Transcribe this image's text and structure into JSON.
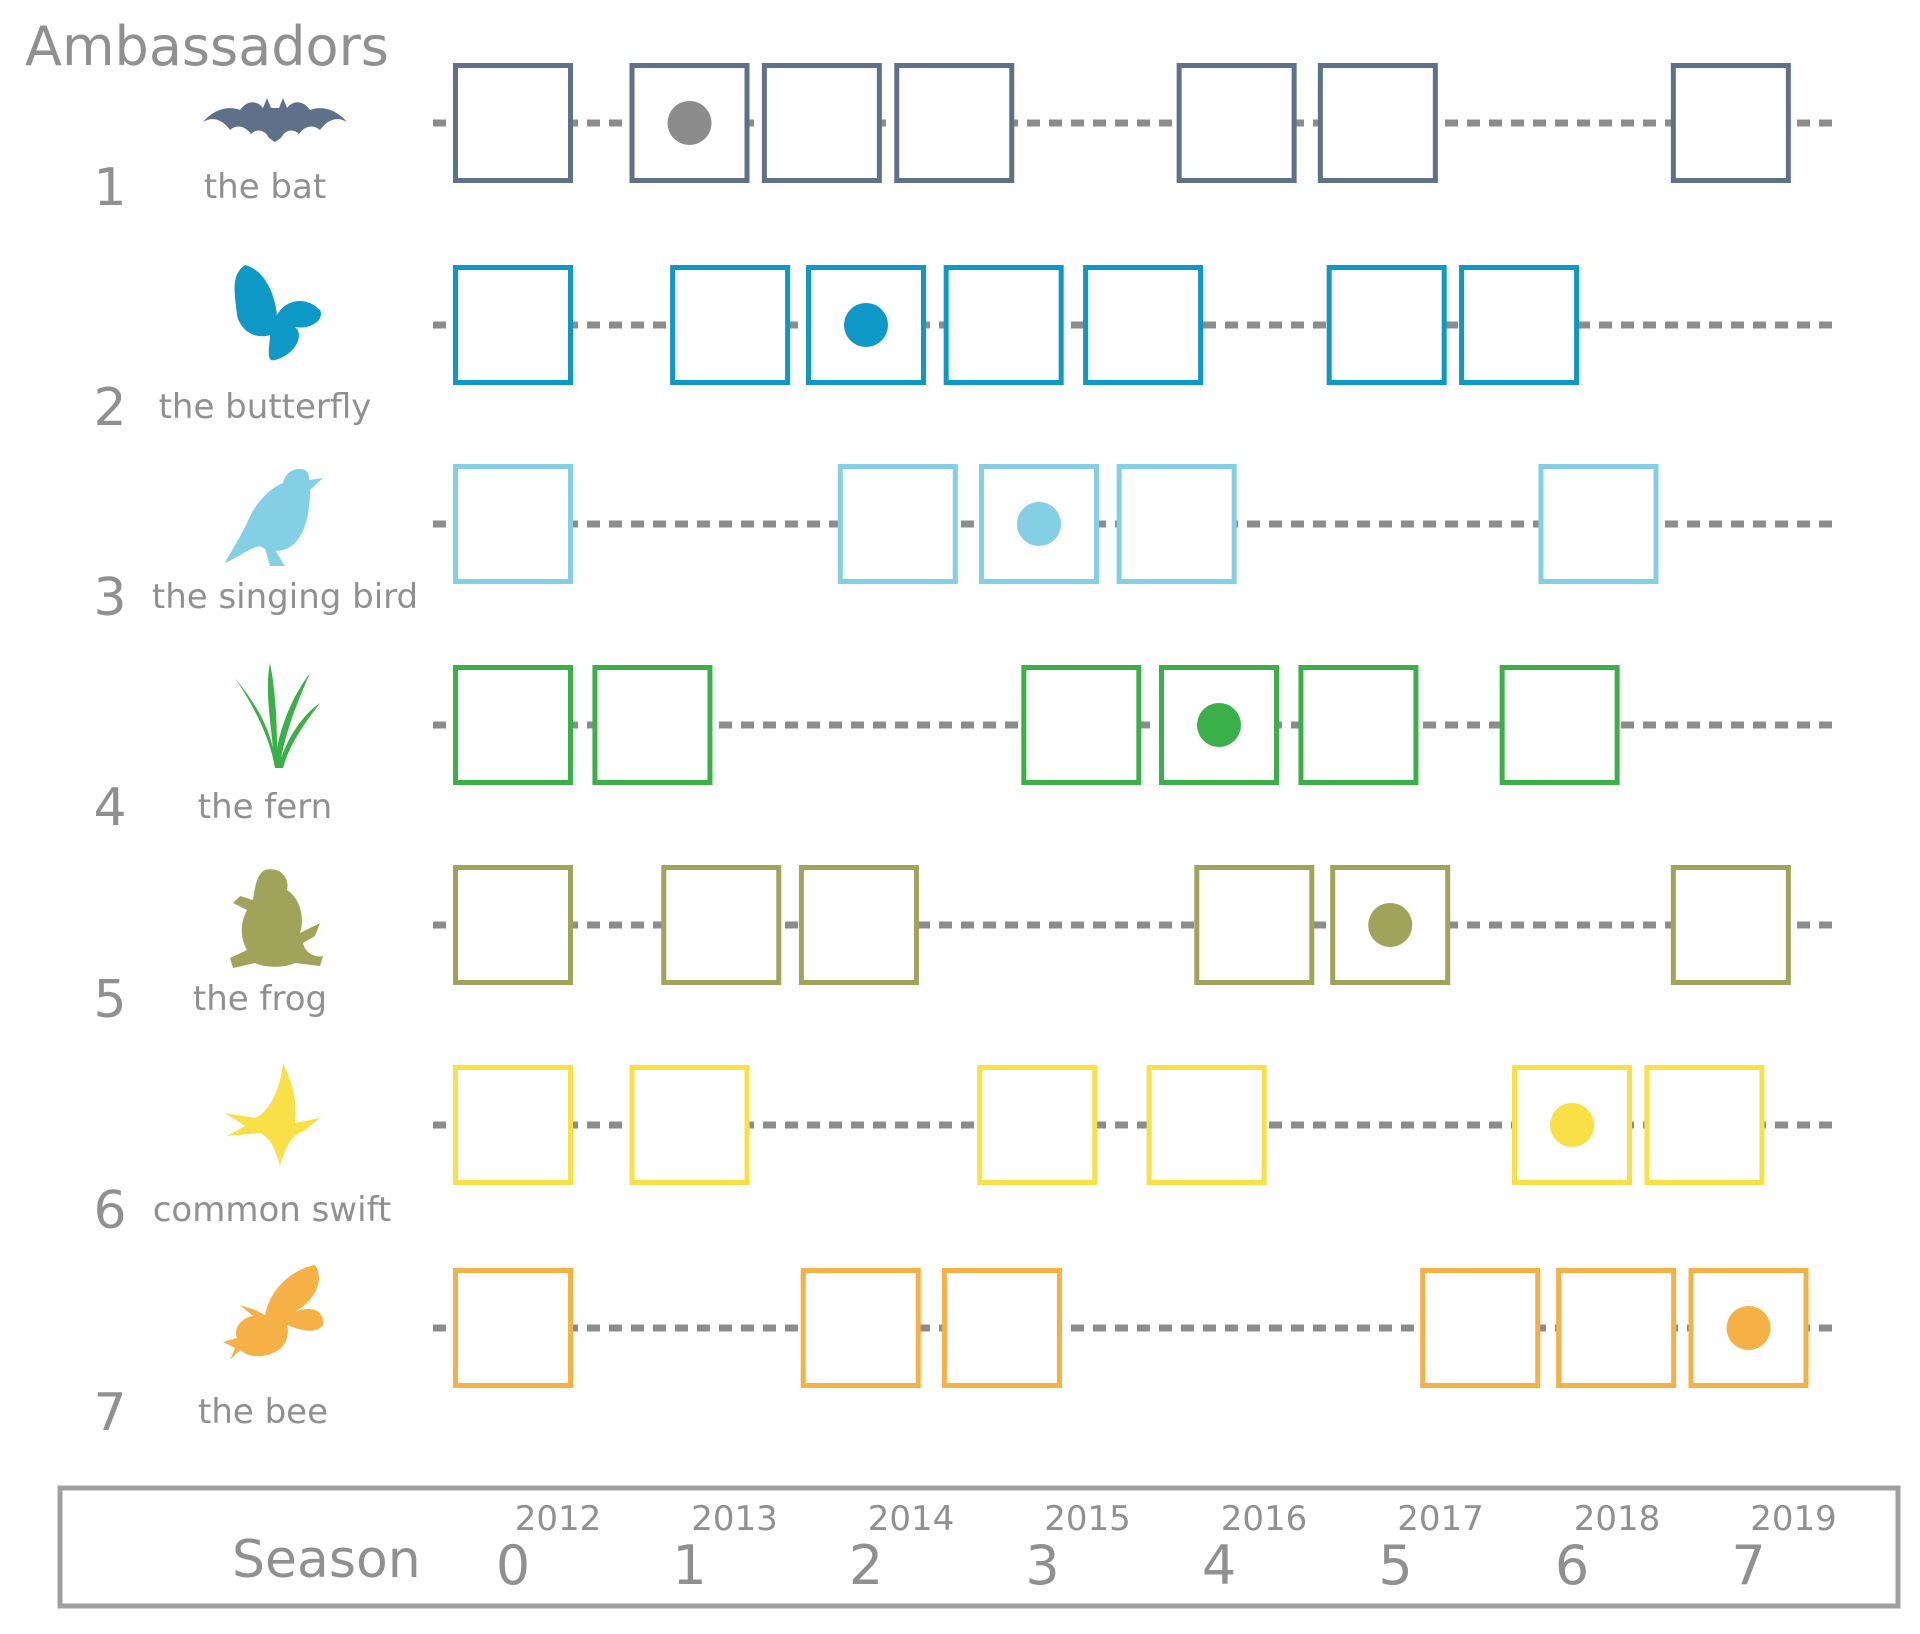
{
  "title": "Ambassadors",
  "season_label": "Season",
  "colors": {
    "dashed_line": "#8c8c8c",
    "label_text": "#909090",
    "footer_border": "#a0a0a0"
  },
  "seasons": [
    {
      "number": "0",
      "year": "2012"
    },
    {
      "number": "1",
      "year": "2013"
    },
    {
      "number": "2",
      "year": "2014"
    },
    {
      "number": "3",
      "year": "2015"
    },
    {
      "number": "4",
      "year": "2016"
    },
    {
      "number": "5",
      "year": "2017"
    },
    {
      "number": "6",
      "year": "2018"
    },
    {
      "number": "7",
      "year": "2019"
    }
  ],
  "ambassadors": [
    {
      "number": "1",
      "name": "the bat",
      "icon": "bat-icon",
      "color": "#5f7089",
      "box_positions": [
        0,
        1,
        1.75,
        2.5,
        4.1,
        4.9,
        6.9
      ],
      "dot_at": 1
    },
    {
      "number": "2",
      "name": "the butterfly",
      "icon": "butterfly-icon",
      "color": "#0e98c6",
      "box_positions": [
        0,
        1.23,
        2.0,
        2.78,
        3.57,
        4.95,
        5.7
      ],
      "dot_at": 2.0
    },
    {
      "number": "3",
      "name": "the singing bird",
      "icon": "bird-icon",
      "color": "#83cfe3",
      "box_positions": [
        0,
        2.18,
        2.98,
        3.76,
        6.15
      ],
      "dot_at": 2.98
    },
    {
      "number": "4",
      "name": "the fern",
      "icon": "fern-icon",
      "color": "#3bb049",
      "box_positions": [
        0,
        0.79,
        3.22,
        4.0,
        4.79,
        5.93
      ],
      "dot_at": 4.0
    },
    {
      "number": "5",
      "name": "the frog",
      "icon": "frog-icon",
      "color": "#a0a35a",
      "box_positions": [
        0,
        1.18,
        1.96,
        4.2,
        4.97,
        6.9
      ],
      "dot_at": 4.97
    },
    {
      "number": "6",
      "name": "common swift",
      "icon": "swift-icon",
      "color": "#f9e046",
      "box_positions": [
        0,
        1.0,
        2.97,
        3.93,
        6.0,
        6.75
      ],
      "dot_at": 6.0
    },
    {
      "number": "7",
      "name": "the bee",
      "icon": "bee-icon",
      "color": "#f5b046",
      "box_positions": [
        0,
        1.97,
        2.77,
        5.48,
        6.25,
        7.0
      ],
      "dot_at": 7.0
    }
  ]
}
